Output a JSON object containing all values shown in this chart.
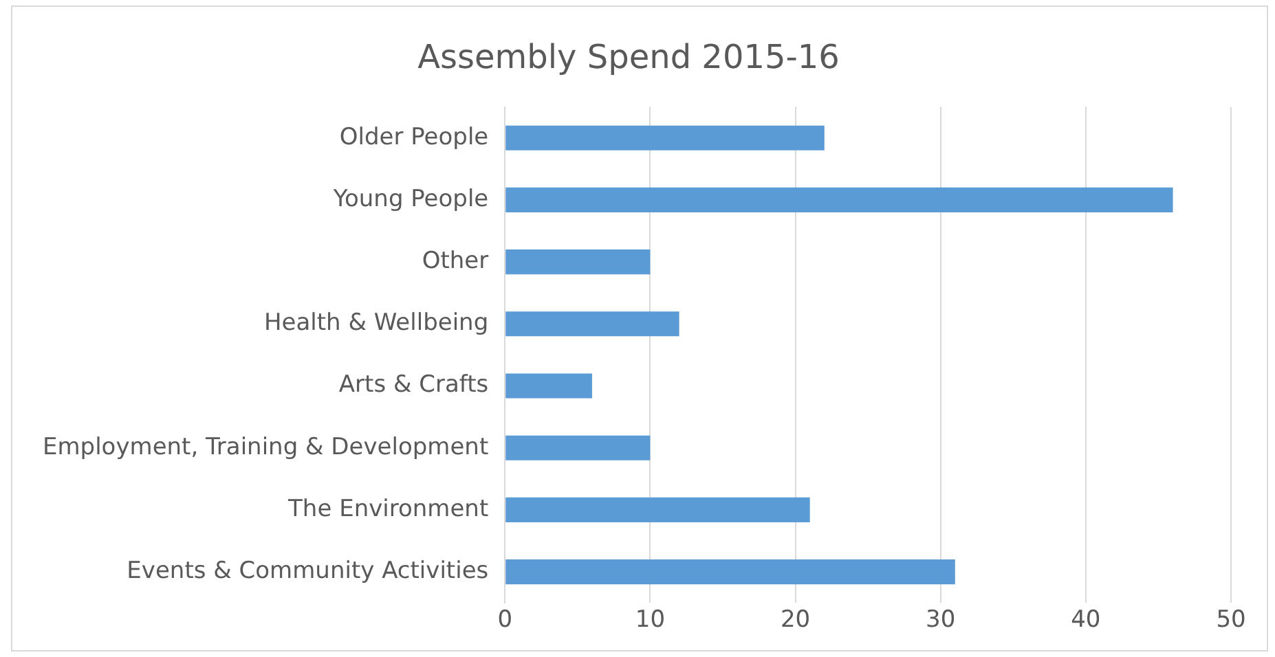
{
  "chart_data": {
    "type": "bar",
    "orientation": "horizontal",
    "title": "Assembly Spend 2015-16",
    "categories": [
      "Older People",
      "Young People",
      "Other",
      "Health & Wellbeing",
      "Arts & Crafts",
      "Employment, Training & Development",
      "The Environment",
      "Events & Community Activities"
    ],
    "values": [
      22,
      46,
      10,
      12,
      6,
      10,
      21,
      31
    ],
    "color": "#5b9bd5",
    "xlim": [
      0,
      50
    ],
    "xticks": [
      0,
      10,
      20,
      30,
      40,
      50
    ],
    "grid": "x"
  }
}
